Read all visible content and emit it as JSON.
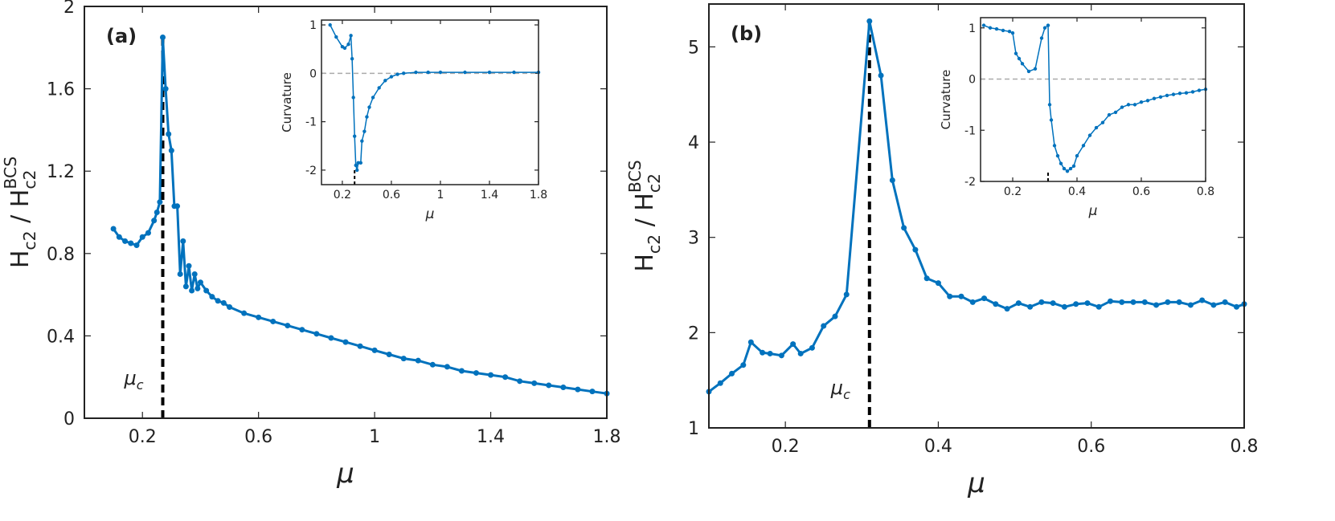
{
  "chart_data": [
    {
      "type": "line",
      "panel_label": "(a)",
      "xlabel": "μ",
      "ylabel": [
        "H",
        "c2",
        " / H",
        "c2",
        "BCS"
      ],
      "annotation": [
        "μ",
        "c"
      ],
      "color": "#0072BD",
      "xlim": [
        0,
        1.8
      ],
      "ylim": [
        0,
        2
      ],
      "xticks": [
        0.2,
        0.6,
        1,
        1.4,
        1.8
      ],
      "yticks": [
        0,
        0.4,
        0.8,
        1.2,
        1.6,
        2
      ],
      "vline_x": 0.27,
      "x": [
        0.1,
        0.12,
        0.14,
        0.16,
        0.18,
        0.2,
        0.22,
        0.24,
        0.25,
        0.26,
        0.27,
        0.28,
        0.29,
        0.3,
        0.31,
        0.32,
        0.33,
        0.34,
        0.35,
        0.36,
        0.37,
        0.38,
        0.39,
        0.4,
        0.42,
        0.44,
        0.46,
        0.48,
        0.5,
        0.55,
        0.6,
        0.65,
        0.7,
        0.75,
        0.8,
        0.85,
        0.9,
        0.95,
        1.0,
        1.05,
        1.1,
        1.15,
        1.2,
        1.25,
        1.3,
        1.35,
        1.4,
        1.45,
        1.5,
        1.55,
        1.6,
        1.65,
        1.7,
        1.75,
        1.8
      ],
      "values": [
        0.92,
        0.88,
        0.86,
        0.85,
        0.84,
        0.88,
        0.9,
        0.96,
        1.0,
        1.05,
        1.85,
        1.6,
        1.38,
        1.3,
        1.03,
        1.03,
        0.7,
        0.86,
        0.64,
        0.74,
        0.62,
        0.7,
        0.63,
        0.66,
        0.62,
        0.59,
        0.57,
        0.56,
        0.54,
        0.51,
        0.49,
        0.47,
        0.45,
        0.43,
        0.41,
        0.39,
        0.37,
        0.35,
        0.33,
        0.31,
        0.29,
        0.28,
        0.26,
        0.25,
        0.23,
        0.22,
        0.21,
        0.2,
        0.18,
        0.17,
        0.16,
        0.15,
        0.14,
        0.13,
        0.12
      ]
    },
    {
      "type": "line",
      "xlabel": "μ",
      "ylabel": [
        "Curvature"
      ],
      "color": "#0072BD",
      "hline": 0,
      "vline_x": 0.3,
      "xlim": [
        0.03,
        1.8
      ],
      "ylim": [
        -2.3,
        1.1
      ],
      "xticks": [
        0.2,
        0.6,
        1,
        1.4,
        1.8
      ],
      "yticks": [
        -2,
        -1,
        0,
        1
      ],
      "x": [
        0.1,
        0.15,
        0.2,
        0.22,
        0.25,
        0.27,
        0.28,
        0.29,
        0.3,
        0.31,
        0.32,
        0.33,
        0.35,
        0.36,
        0.38,
        0.4,
        0.42,
        0.45,
        0.5,
        0.55,
        0.6,
        0.65,
        0.7,
        0.8,
        0.9,
        1.0,
        1.2,
        1.4,
        1.6,
        1.8
      ],
      "values": [
        1.0,
        0.75,
        0.55,
        0.52,
        0.6,
        0.78,
        0.3,
        -0.5,
        -1.3,
        -1.9,
        -2.0,
        -1.85,
        -1.85,
        -1.4,
        -1.2,
        -0.9,
        -0.7,
        -0.5,
        -0.3,
        -0.15,
        -0.07,
        -0.02,
        0.0,
        0.02,
        0.02,
        0.02,
        0.02,
        0.02,
        0.02,
        0.02
      ]
    },
    {
      "type": "line",
      "panel_label": "(b)",
      "xlabel": "μ",
      "ylabel": [
        "H",
        "c2",
        " / H",
        "c2",
        "BCS"
      ],
      "annotation": [
        "μ",
        "c"
      ],
      "color": "#0072BD",
      "xlim": [
        0.1,
        0.8
      ],
      "ylim": [
        1,
        5.45
      ],
      "xticks": [
        0.2,
        0.4,
        0.6,
        0.8
      ],
      "yticks": [
        1,
        2,
        3,
        4,
        5
      ],
      "vline_x": 0.31,
      "x": [
        0.1,
        0.115,
        0.13,
        0.145,
        0.155,
        0.17,
        0.18,
        0.195,
        0.21,
        0.22,
        0.235,
        0.25,
        0.265,
        0.28,
        0.31,
        0.325,
        0.34,
        0.355,
        0.37,
        0.385,
        0.4,
        0.415,
        0.43,
        0.445,
        0.46,
        0.475,
        0.49,
        0.505,
        0.52,
        0.535,
        0.55,
        0.565,
        0.58,
        0.595,
        0.61,
        0.625,
        0.64,
        0.655,
        0.67,
        0.685,
        0.7,
        0.715,
        0.73,
        0.745,
        0.76,
        0.775,
        0.79,
        0.8
      ],
      "values": [
        1.38,
        1.47,
        1.57,
        1.66,
        1.9,
        1.79,
        1.78,
        1.76,
        1.88,
        1.78,
        1.84,
        2.07,
        2.17,
        2.4,
        5.27,
        4.7,
        3.6,
        3.1,
        2.87,
        2.57,
        2.52,
        2.38,
        2.38,
        2.32,
        2.36,
        2.3,
        2.25,
        2.31,
        2.27,
        2.32,
        2.31,
        2.27,
        2.3,
        2.31,
        2.27,
        2.33,
        2.32,
        2.32,
        2.32,
        2.29,
        2.32,
        2.32,
        2.29,
        2.34,
        2.29,
        2.32,
        2.27,
        2.3
      ]
    },
    {
      "type": "line",
      "xlabel": "μ",
      "ylabel": [
        "Curvature"
      ],
      "color": "#0072BD",
      "hline": 0,
      "vline_x": 0.31,
      "xlim": [
        0.1,
        0.8
      ],
      "ylim": [
        -2,
        1.2
      ],
      "xticks": [
        0.2,
        0.4,
        0.6,
        0.8
      ],
      "yticks": [
        -2,
        -1,
        0,
        1
      ],
      "x": [
        0.11,
        0.13,
        0.15,
        0.17,
        0.19,
        0.2,
        0.21,
        0.22,
        0.23,
        0.25,
        0.27,
        0.29,
        0.3,
        0.31,
        0.315,
        0.32,
        0.33,
        0.34,
        0.35,
        0.36,
        0.37,
        0.38,
        0.39,
        0.4,
        0.42,
        0.44,
        0.46,
        0.48,
        0.5,
        0.52,
        0.54,
        0.56,
        0.58,
        0.6,
        0.62,
        0.64,
        0.66,
        0.68,
        0.7,
        0.72,
        0.74,
        0.76,
        0.78,
        0.8
      ],
      "values": [
        1.05,
        1.0,
        0.98,
        0.95,
        0.93,
        0.9,
        0.5,
        0.4,
        0.3,
        0.15,
        0.2,
        0.8,
        1.0,
        1.05,
        -0.5,
        -0.8,
        -1.3,
        -1.5,
        -1.65,
        -1.75,
        -1.8,
        -1.75,
        -1.7,
        -1.5,
        -1.3,
        -1.1,
        -0.95,
        -0.85,
        -0.7,
        -0.65,
        -0.55,
        -0.5,
        -0.5,
        -0.45,
        -0.42,
        -0.38,
        -0.35,
        -0.32,
        -0.3,
        -0.28,
        -0.27,
        -0.25,
        -0.22,
        -0.2
      ]
    }
  ]
}
